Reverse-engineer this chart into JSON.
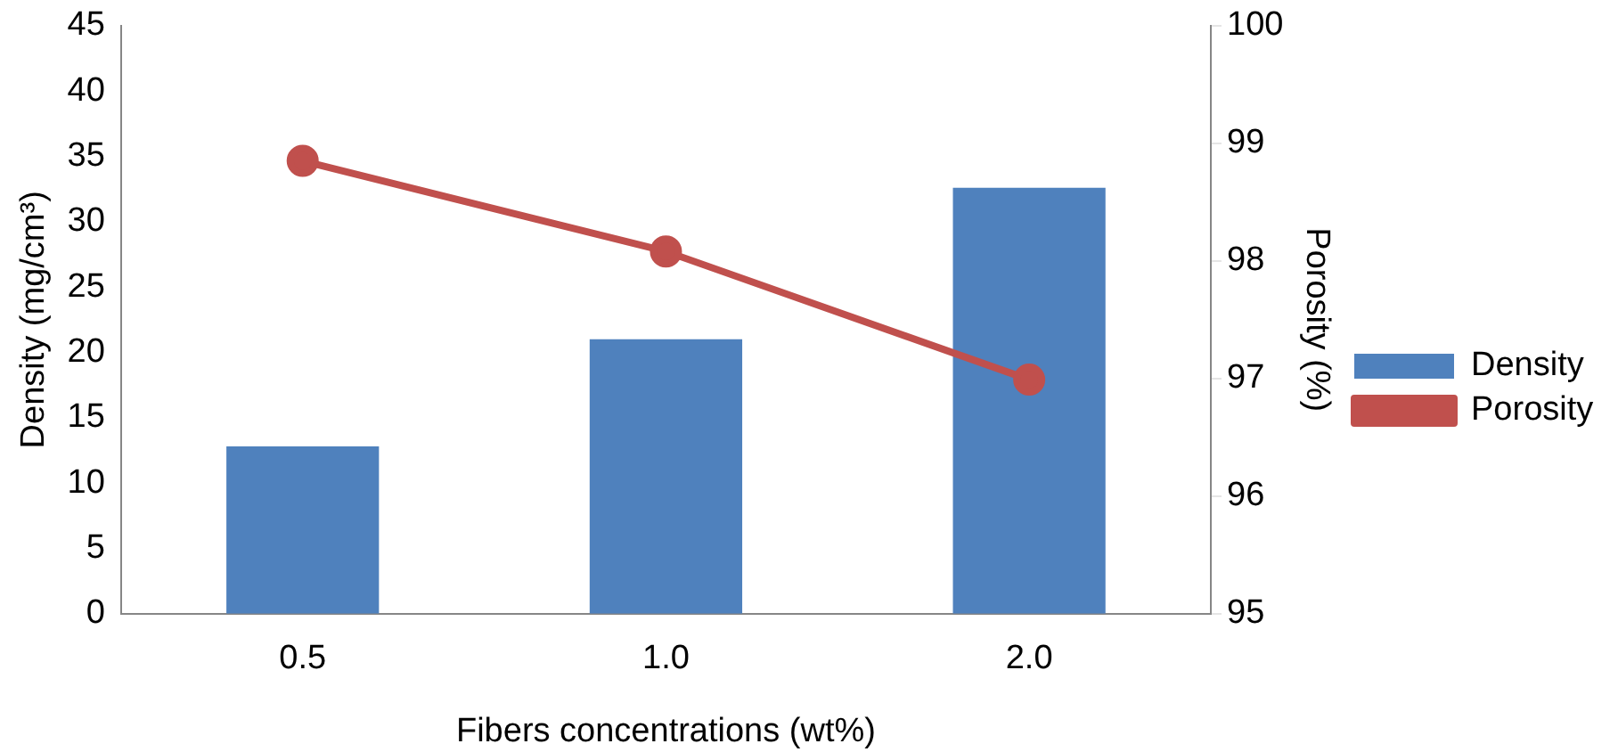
{
  "chart_data": {
    "type": "bar",
    "categories": [
      "0.5",
      "1.0",
      "2.0"
    ],
    "xlabel": "Fibers concentrations (wt%)",
    "ylabel": "Density (mg/cm³)",
    "y2label": "Porosity (%)",
    "series": [
      {
        "name": "Density",
        "color": "#4f81bd",
        "values": [
          12.8,
          21.0,
          32.6
        ]
      },
      {
        "name": "Porosity",
        "type": "line",
        "axis": "y2",
        "color": "#c0504d",
        "values": [
          98.85,
          98.08,
          96.99
        ]
      }
    ],
    "ylim": [
      0,
      45
    ],
    "yticks": [
      0,
      5,
      10,
      15,
      20,
      25,
      30,
      35,
      40,
      45
    ],
    "y2lim": [
      95,
      100
    ],
    "y2ticks": [
      95,
      96,
      97,
      98,
      99,
      100
    ],
    "grid": false,
    "legend": "right",
    "marker": "circle",
    "line_style": "solid"
  }
}
